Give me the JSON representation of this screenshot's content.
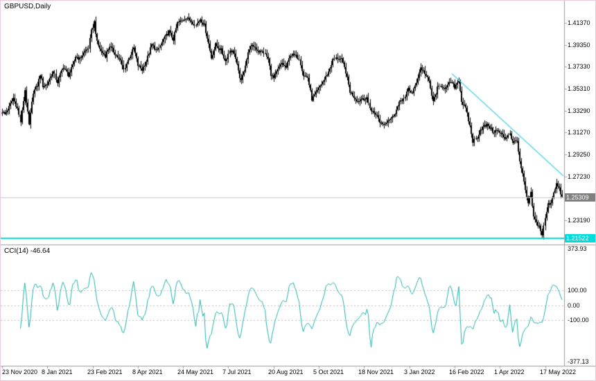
{
  "colors": {
    "background": "#ffffff",
    "frame": "#ecc9dc",
    "bar": "#000000",
    "text": "#000000",
    "separator": "#9b9b9b",
    "bid_line": "#c8c8c8",
    "bid_badge_bg": "#808080",
    "badge_text": "#ffffff",
    "hline": "#00dcdc",
    "trendline": "#5ad6e8",
    "cci_line": "#20b2aa",
    "level_dash": "#bdbdbd"
  },
  "chart_data": [
    {
      "type": "candlestick",
      "title": "GBPUSD,Daily",
      "symbol": "GBPUSD",
      "timeframe": "Daily",
      "bars_total": 397,
      "price_top": 1.4341,
      "price_bottom": 1.2096,
      "y_ticks": [
        "1.41370",
        "1.39350",
        "1.37330",
        "1.35310",
        "1.33290",
        "1.31270",
        "1.29250",
        "1.27230",
        "1.23190"
      ],
      "x_ticks": [
        {
          "label": "23 Nov 2020",
          "bar": 0
        },
        {
          "label": "8 Jan 2021",
          "bar": 32
        },
        {
          "label": "23 Feb 2021",
          "bar": 64
        },
        {
          "label": "8 Apr 2021",
          "bar": 96
        },
        {
          "label": "24 May 2021",
          "bar": 128
        },
        {
          "label": "7 Jul 2021",
          "bar": 160
        },
        {
          "label": "20 Aug 2021",
          "bar": 192
        },
        {
          "label": "5 Oct 2021",
          "bar": 224
        },
        {
          "label": "18 Nov 2021",
          "bar": 256
        },
        {
          "label": "3 Jan 2022",
          "bar": 288
        },
        {
          "label": "16 Feb 2022",
          "bar": 320
        },
        {
          "label": "1 Apr 2022",
          "bar": 352
        },
        {
          "label": "17 May 2022",
          "bar": 384
        }
      ],
      "bid": {
        "value": 1.25309,
        "label": "1.25309"
      },
      "hline": {
        "value": 1.21522,
        "label": "1.21522"
      },
      "trendline": {
        "from_bar": 318,
        "from_price": 1.367,
        "to_bar": 398,
        "to_price": 1.2715
      },
      "noise": 0.0035,
      "close_anchors": [
        [
          0,
          1.332
        ],
        [
          2,
          1.3295
        ],
        [
          5,
          1.336
        ],
        [
          8,
          1.3445
        ],
        [
          11,
          1.335
        ],
        [
          13,
          1.3225
        ],
        [
          16,
          1.352
        ],
        [
          19,
          1.3195
        ],
        [
          22,
          1.35
        ],
        [
          25,
          1.356
        ],
        [
          27,
          1.3665
        ],
        [
          29,
          1.3555
        ],
        [
          32,
          1.357
        ],
        [
          36,
          1.3685
        ],
        [
          39,
          1.359
        ],
        [
          43,
          1.3735
        ],
        [
          47,
          1.3655
        ],
        [
          50,
          1.374
        ],
        [
          52,
          1.383
        ],
        [
          55,
          1.3805
        ],
        [
          58,
          1.386
        ],
        [
          61,
          1.3905
        ],
        [
          63,
          1.406
        ],
        [
          65,
          1.4145
        ],
        [
          67,
          1.3955
        ],
        [
          70,
          1.3875
        ],
        [
          73,
          1.3835
        ],
        [
          76,
          1.3925
        ],
        [
          80,
          1.3855
        ],
        [
          84,
          1.3785
        ],
        [
          86,
          1.3705
        ],
        [
          89,
          1.3795
        ],
        [
          93,
          1.3905
        ],
        [
          96,
          1.3745
        ],
        [
          99,
          1.3705
        ],
        [
          102,
          1.3785
        ],
        [
          106,
          1.3935
        ],
        [
          110,
          1.3875
        ],
        [
          114,
          1.3985
        ],
        [
          118,
          1.4055
        ],
        [
          121,
          1.3985
        ],
        [
          124,
          1.4135
        ],
        [
          127,
          1.4155
        ],
        [
          130,
          1.4185
        ],
        [
          134,
          1.4155
        ],
        [
          137,
          1.4115
        ],
        [
          140,
          1.4175
        ],
        [
          143,
          1.4115
        ],
        [
          146,
          1.3945
        ],
        [
          148,
          1.3815
        ],
        [
          151,
          1.3935
        ],
        [
          155,
          1.3885
        ],
        [
          158,
          1.3785
        ],
        [
          161,
          1.3885
        ],
        [
          164,
          1.3865
        ],
        [
          167,
          1.3685
        ],
        [
          169,
          1.3595
        ],
        [
          172,
          1.3755
        ],
        [
          175,
          1.3905
        ],
        [
          178,
          1.3925
        ],
        [
          182,
          1.3875
        ],
        [
          185,
          1.3865
        ],
        [
          188,
          1.3805
        ],
        [
          190,
          1.3665
        ],
        [
          192,
          1.3625
        ],
        [
          195,
          1.3705
        ],
        [
          198,
          1.3765
        ],
        [
          201,
          1.3725
        ],
        [
          204,
          1.3845
        ],
        [
          207,
          1.3835
        ],
        [
          210,
          1.3815
        ],
        [
          213,
          1.3655
        ],
        [
          216,
          1.3635
        ],
        [
          219,
          1.3435
        ],
        [
          222,
          1.3485
        ],
        [
          225,
          1.3555
        ],
        [
          228,
          1.3615
        ],
        [
          231,
          1.3685
        ],
        [
          234,
          1.3795
        ],
        [
          237,
          1.3815
        ],
        [
          240,
          1.3795
        ],
        [
          243,
          1.3685
        ],
        [
          246,
          1.3505
        ],
        [
          249,
          1.3455
        ],
        [
          252,
          1.3415
        ],
        [
          255,
          1.3445
        ],
        [
          258,
          1.3435
        ],
        [
          261,
          1.3325
        ],
        [
          264,
          1.3305
        ],
        [
          267,
          1.3225
        ],
        [
          270,
          1.3205
        ],
        [
          273,
          1.3245
        ],
        [
          276,
          1.3265
        ],
        [
          279,
          1.3335
        ],
        [
          282,
          1.3425
        ],
        [
          285,
          1.3445
        ],
        [
          287,
          1.3535
        ],
        [
          290,
          1.3485
        ],
        [
          293,
          1.3595
        ],
        [
          296,
          1.3725
        ],
        [
          299,
          1.3675
        ],
        [
          302,
          1.3595
        ],
        [
          305,
          1.3405
        ],
        [
          308,
          1.3535
        ],
        [
          311,
          1.3555
        ],
        [
          314,
          1.3535
        ],
        [
          317,
          1.3595
        ],
        [
          320,
          1.3545
        ],
        [
          323,
          1.3615
        ],
        [
          325,
          1.3415
        ],
        [
          328,
          1.3345
        ],
        [
          331,
          1.3185
        ],
        [
          333,
          1.3045
        ],
        [
          336,
          1.3085
        ],
        [
          338,
          1.3155
        ],
        [
          341,
          1.3185
        ],
        [
          344,
          1.3195
        ],
        [
          347,
          1.3135
        ],
        [
          350,
          1.3145
        ],
        [
          353,
          1.3115
        ],
        [
          356,
          1.3075
        ],
        [
          359,
          1.3125
        ],
        [
          361,
          1.3025
        ],
        [
          364,
          1.3065
        ],
        [
          366,
          1.2845
        ],
        [
          368,
          1.2745
        ],
        [
          370,
          1.2585
        ],
        [
          372,
          1.2475
        ],
        [
          374,
          1.2565
        ],
        [
          376,
          1.2345
        ],
        [
          378,
          1.2295
        ],
        [
          380,
          1.2265
        ],
        [
          382,
          1.2185
        ],
        [
          384,
          1.2335
        ],
        [
          386,
          1.2465
        ],
        [
          388,
          1.2485
        ],
        [
          390,
          1.2585
        ],
        [
          392,
          1.2655
        ],
        [
          394,
          1.2605
        ],
        [
          396,
          1.253
        ]
      ]
    },
    {
      "type": "line",
      "title": "CCI(14) -46.64",
      "indicator": "CCI",
      "period": 14,
      "current_value": -46.64,
      "levels": [
        {
          "value": 100,
          "label": "100.00"
        },
        {
          "value": 0,
          "label": "0.00"
        },
        {
          "value": -100,
          "label": "-100.00"
        }
      ],
      "y_max": 373.93,
      "y_min": -377.13,
      "max_label": "373.93",
      "min_label": "-377.13"
    }
  ]
}
